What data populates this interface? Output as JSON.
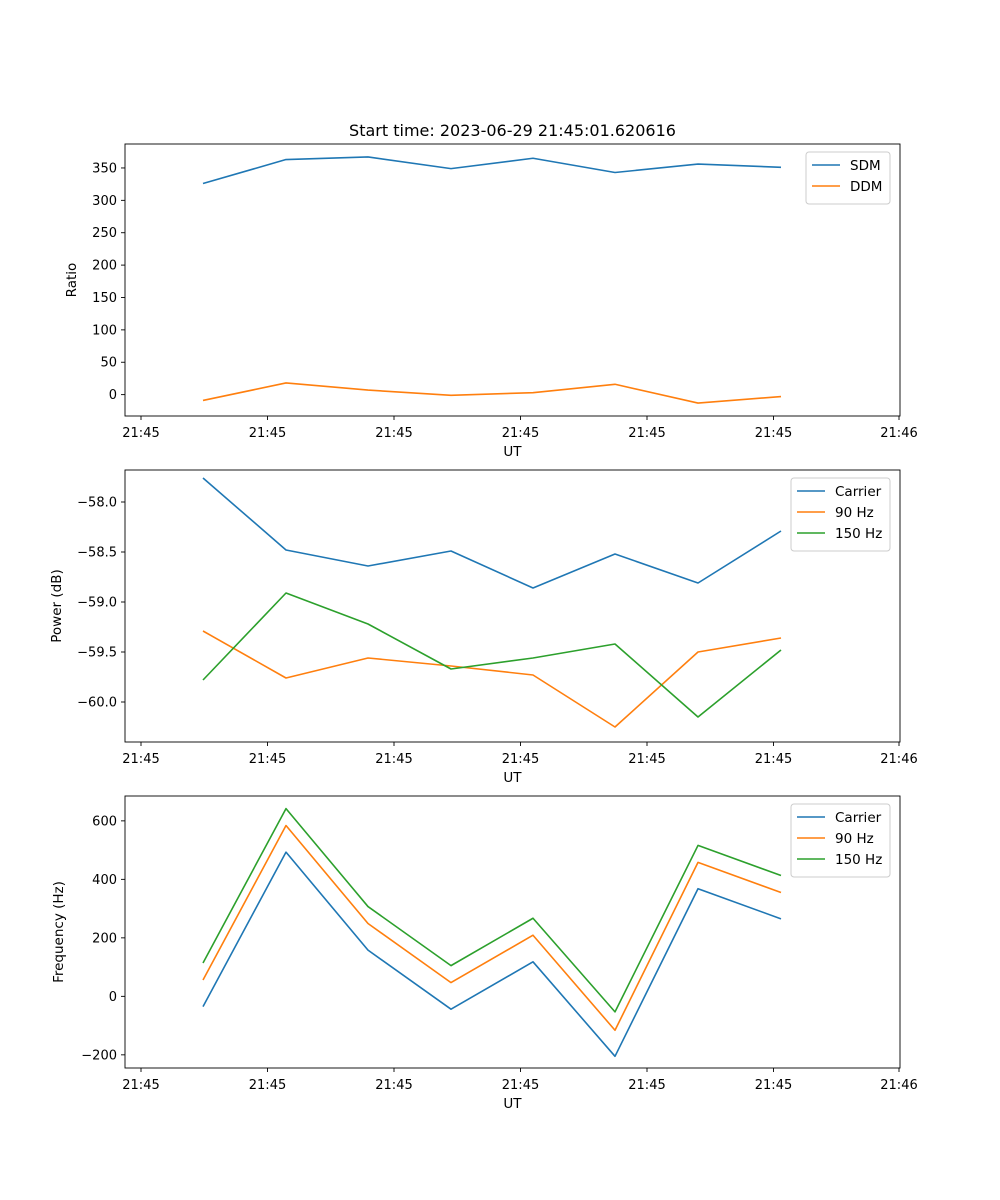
{
  "title": "Start time: 2023-06-29 21:45:01.620616",
  "chart_data": [
    {
      "type": "line",
      "xlabel": "UT",
      "ylabel": "Ratio",
      "x_tick_labels": [
        "21:45",
        "21:45",
        "21:45",
        "21:45",
        "21:45",
        "21:45",
        "21:46"
      ],
      "y_ticks": [
        0,
        50,
        100,
        150,
        200,
        250,
        300,
        350
      ],
      "ylim": [
        -33,
        387
      ],
      "legend_position": "top-right",
      "grid": false,
      "series": [
        {
          "name": "SDM",
          "color": "#1f77b4",
          "values": [
            326,
            363,
            367,
            349,
            365,
            343,
            356,
            351
          ]
        },
        {
          "name": "DDM",
          "color": "#ff7f0e",
          "values": [
            -9,
            18,
            7,
            -1,
            3,
            16,
            -13,
            -3
          ]
        }
      ]
    },
    {
      "type": "line",
      "xlabel": "UT",
      "ylabel": "Power (dB)",
      "x_tick_labels": [
        "21:45",
        "21:45",
        "21:45",
        "21:45",
        "21:45",
        "21:45",
        "21:46"
      ],
      "y_ticks": [
        -60.0,
        -59.5,
        -59.0,
        -58.5,
        -58.0
      ],
      "y_tick_labels": [
        "−60.0",
        "−59.5",
        "−59.0",
        "−58.5",
        "−58.0"
      ],
      "ylim": [
        -60.4,
        -57.68
      ],
      "legend_position": "top-right",
      "grid": false,
      "series": [
        {
          "name": "Carrier",
          "color": "#1f77b4",
          "values": [
            -57.76,
            -58.48,
            -58.64,
            -58.49,
            -58.86,
            -58.52,
            -58.81,
            -58.29
          ]
        },
        {
          "name": "90 Hz",
          "color": "#ff7f0e",
          "values": [
            -59.29,
            -59.76,
            -59.56,
            -59.64,
            -59.73,
            -60.25,
            -59.5,
            -59.36
          ]
        },
        {
          "name": "150 Hz",
          "color": "#2ca02c",
          "values": [
            -59.78,
            -58.91,
            -59.22,
            -59.67,
            -59.56,
            -59.42,
            -60.15,
            -59.48
          ]
        }
      ]
    },
    {
      "type": "line",
      "xlabel": "UT",
      "ylabel": "Frequency (Hz)",
      "x_tick_labels": [
        "21:45",
        "21:45",
        "21:45",
        "21:45",
        "21:45",
        "21:45",
        "21:46"
      ],
      "y_ticks": [
        -200,
        0,
        200,
        400,
        600
      ],
      "y_tick_labels": [
        "−200",
        "0",
        "200",
        "400",
        "600"
      ],
      "ylim": [
        -245,
        685
      ],
      "legend_position": "top-right",
      "grid": false,
      "series": [
        {
          "name": "Carrier",
          "color": "#1f77b4",
          "values": [
            -35,
            493,
            158,
            -44,
            118,
            -205,
            368,
            265
          ]
        },
        {
          "name": "90 Hz",
          "color": "#ff7f0e",
          "values": [
            56,
            584,
            249,
            47,
            209,
            -116,
            458,
            355
          ]
        },
        {
          "name": "150 Hz",
          "color": "#2ca02c",
          "values": [
            114,
            642,
            307,
            105,
            267,
            -53,
            516,
            413
          ]
        }
      ]
    }
  ]
}
